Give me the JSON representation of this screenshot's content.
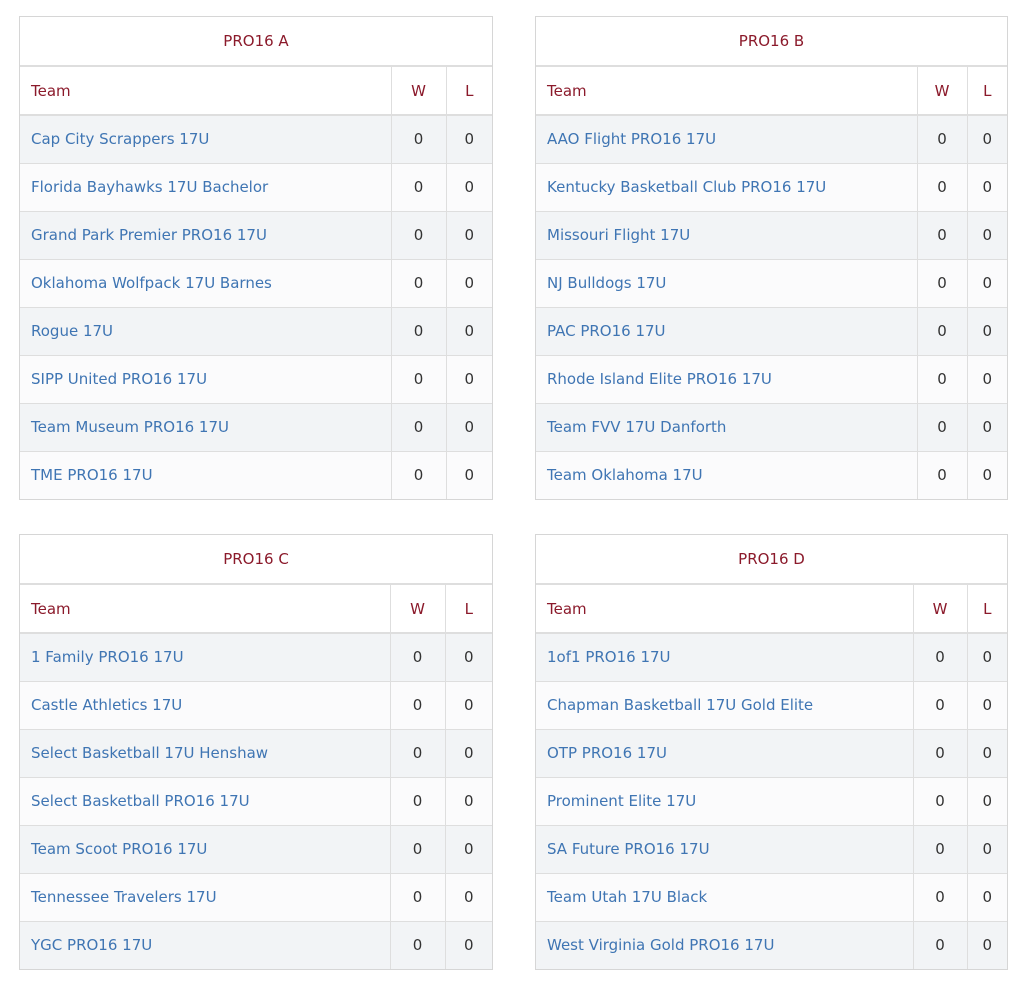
{
  "headers": {
    "team": "Team",
    "w": "W",
    "l": "L"
  },
  "pools": [
    {
      "title": "PRO16 A",
      "teams": [
        {
          "name": "Cap City Scrappers 17U",
          "w": "0",
          "l": "0"
        },
        {
          "name": "Florida Bayhawks 17U Bachelor",
          "w": "0",
          "l": "0"
        },
        {
          "name": "Grand Park Premier PRO16 17U",
          "w": "0",
          "l": "0"
        },
        {
          "name": "Oklahoma Wolfpack 17U Barnes",
          "w": "0",
          "l": "0"
        },
        {
          "name": "Rogue 17U",
          "w": "0",
          "l": "0"
        },
        {
          "name": "SIPP United PRO16 17U",
          "w": "0",
          "l": "0"
        },
        {
          "name": "Team Museum PRO16 17U",
          "w": "0",
          "l": "0"
        },
        {
          "name": "TME PRO16 17U",
          "w": "0",
          "l": "0"
        }
      ]
    },
    {
      "title": "PRO16 B",
      "teams": [
        {
          "name": "AAO Flight PRO16 17U",
          "w": "0",
          "l": "0"
        },
        {
          "name": "Kentucky Basketball Club PRO16 17U",
          "w": "0",
          "l": "0"
        },
        {
          "name": "Missouri Flight 17U",
          "w": "0",
          "l": "0"
        },
        {
          "name": "NJ Bulldogs 17U",
          "w": "0",
          "l": "0"
        },
        {
          "name": "PAC PRO16 17U",
          "w": "0",
          "l": "0"
        },
        {
          "name": "Rhode Island Elite PRO16 17U",
          "w": "0",
          "l": "0"
        },
        {
          "name": "Team FVV 17U Danforth",
          "w": "0",
          "l": "0"
        },
        {
          "name": "Team Oklahoma 17U",
          "w": "0",
          "l": "0"
        }
      ]
    },
    {
      "title": "PRO16 C",
      "teams": [
        {
          "name": "1 Family PRO16 17U",
          "w": "0",
          "l": "0"
        },
        {
          "name": "Castle Athletics 17U",
          "w": "0",
          "l": "0"
        },
        {
          "name": "Select Basketball 17U Henshaw",
          "w": "0",
          "l": "0"
        },
        {
          "name": "Select Basketball PRO16 17U",
          "w": "0",
          "l": "0"
        },
        {
          "name": "Team Scoot PRO16 17U",
          "w": "0",
          "l": "0"
        },
        {
          "name": "Tennessee Travelers 17U",
          "w": "0",
          "l": "0"
        },
        {
          "name": "YGC PRO16 17U",
          "w": "0",
          "l": "0"
        }
      ]
    },
    {
      "title": "PRO16 D",
      "teams": [
        {
          "name": "1of1 PRO16 17U",
          "w": "0",
          "l": "0"
        },
        {
          "name": "Chapman Basketball 17U Gold Elite",
          "w": "0",
          "l": "0"
        },
        {
          "name": "OTP PRO16 17U",
          "w": "0",
          "l": "0"
        },
        {
          "name": "Prominent Elite 17U",
          "w": "0",
          "l": "0"
        },
        {
          "name": "SA Future PRO16 17U",
          "w": "0",
          "l": "0"
        },
        {
          "name": "Team Utah 17U Black",
          "w": "0",
          "l": "0"
        },
        {
          "name": "West Virginia Gold PRO16 17U",
          "w": "0",
          "l": "0"
        }
      ]
    }
  ]
}
